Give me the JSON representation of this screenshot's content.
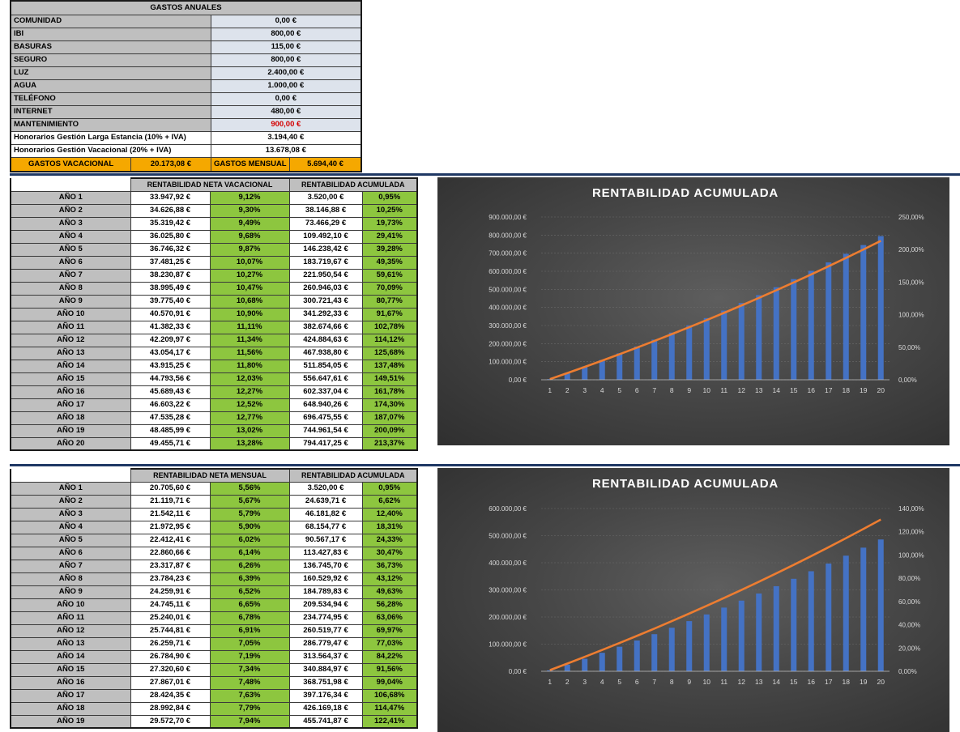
{
  "gastos": {
    "title": "GASTOS ANUALES",
    "rows": [
      {
        "label": "COMUNIDAD",
        "value": "0,00 €"
      },
      {
        "label": "IBI",
        "value": "800,00 €"
      },
      {
        "label": "BASURAS",
        "value": "115,00 €"
      },
      {
        "label": "SEGURO",
        "value": "800,00 €"
      },
      {
        "label": "LUZ",
        "value": "2.400,00 €"
      },
      {
        "label": "AGUA",
        "value": "1.000,00 €"
      },
      {
        "label": "TELÉFONO",
        "value": "0,00 €"
      },
      {
        "label": "INTERNET",
        "value": "480,00 €"
      },
      {
        "label": "MANTENIMIENTO",
        "value": "900,00 €"
      }
    ],
    "honorarios": [
      {
        "label": "Honorarios Gestión Larga Estancia (10% + IVA)",
        "value": "3.194,40 €"
      },
      {
        "label": "Honorarios Gestión Vacacional (20% + IVA)",
        "value": "13.678,08 €"
      }
    ],
    "totals": {
      "vac_label": "GASTOS VACACIONAL",
      "vac_value": "20.173,08 €",
      "men_label": "GASTOS MENSUAL",
      "men_value": "5.694,40 €"
    }
  },
  "vacacional": {
    "header1": "RENTABILIDAD NETA VACACIONAL",
    "header2": "RENTABILIDAD ACUMULADA",
    "rows": [
      {
        "year": "AÑO 1",
        "income": "33.947,92 €",
        "pct": "9,12%",
        "acc": "3.520,00 €",
        "acc_pct": "0,95%"
      },
      {
        "year": "AÑO 2",
        "income": "34.626,88 €",
        "pct": "9,30%",
        "acc": "38.146,88 €",
        "acc_pct": "10,25%"
      },
      {
        "year": "AÑO 3",
        "income": "35.319,42 €",
        "pct": "9,49%",
        "acc": "73.466,29 €",
        "acc_pct": "19,73%"
      },
      {
        "year": "AÑO 4",
        "income": "36.025,80 €",
        "pct": "9,68%",
        "acc": "109.492,10 €",
        "acc_pct": "29,41%"
      },
      {
        "year": "AÑO 5",
        "income": "36.746,32 €",
        "pct": "9,87%",
        "acc": "146.238,42 €",
        "acc_pct": "39,28%"
      },
      {
        "year": "AÑO 6",
        "income": "37.481,25 €",
        "pct": "10,07%",
        "acc": "183.719,67 €",
        "acc_pct": "49,35%"
      },
      {
        "year": "AÑO 7",
        "income": "38.230,87 €",
        "pct": "10,27%",
        "acc": "221.950,54 €",
        "acc_pct": "59,61%"
      },
      {
        "year": "AÑO 8",
        "income": "38.995,49 €",
        "pct": "10,47%",
        "acc": "260.946,03 €",
        "acc_pct": "70,09%"
      },
      {
        "year": "AÑO 9",
        "income": "39.775,40 €",
        "pct": "10,68%",
        "acc": "300.721,43 €",
        "acc_pct": "80,77%"
      },
      {
        "year": "AÑO 10",
        "income": "40.570,91 €",
        "pct": "10,90%",
        "acc": "341.292,33 €",
        "acc_pct": "91,67%"
      },
      {
        "year": "AÑO 11",
        "income": "41.382,33 €",
        "pct": "11,11%",
        "acc": "382.674,66 €",
        "acc_pct": "102,78%"
      },
      {
        "year": "AÑO 12",
        "income": "42.209,97 €",
        "pct": "11,34%",
        "acc": "424.884,63 €",
        "acc_pct": "114,12%"
      },
      {
        "year": "AÑO 13",
        "income": "43.054,17 €",
        "pct": "11,56%",
        "acc": "467.938,80 €",
        "acc_pct": "125,68%"
      },
      {
        "year": "AÑO 14",
        "income": "43.915,25 €",
        "pct": "11,80%",
        "acc": "511.854,05 €",
        "acc_pct": "137,48%"
      },
      {
        "year": "AÑO 15",
        "income": "44.793,56 €",
        "pct": "12,03%",
        "acc": "556.647,61 €",
        "acc_pct": "149,51%"
      },
      {
        "year": "AÑO 16",
        "income": "45.689,43 €",
        "pct": "12,27%",
        "acc": "602.337,04 €",
        "acc_pct": "161,78%"
      },
      {
        "year": "AÑO 17",
        "income": "46.603,22 €",
        "pct": "12,52%",
        "acc": "648.940,26 €",
        "acc_pct": "174,30%"
      },
      {
        "year": "AÑO 18",
        "income": "47.535,28 €",
        "pct": "12,77%",
        "acc": "696.475,55 €",
        "acc_pct": "187,07%"
      },
      {
        "year": "AÑO 19",
        "income": "48.485,99 €",
        "pct": "13,02%",
        "acc": "744.961,54 €",
        "acc_pct": "200,09%"
      },
      {
        "year": "AÑO 20",
        "income": "49.455,71 €",
        "pct": "13,28%",
        "acc": "794.417,25 €",
        "acc_pct": "213,37%"
      }
    ]
  },
  "mensual": {
    "header1": "RENTABILIDAD NETA MENSUAL",
    "header2": "RENTABILIDAD ACUMULADA",
    "rows": [
      {
        "year": "AÑO 1",
        "income": "20.705,60 €",
        "pct": "5,56%",
        "acc": "3.520,00 €",
        "acc_pct": "0,95%"
      },
      {
        "year": "AÑO 2",
        "income": "21.119,71 €",
        "pct": "5,67%",
        "acc": "24.639,71 €",
        "acc_pct": "6,62%"
      },
      {
        "year": "AÑO 3",
        "income": "21.542,11 €",
        "pct": "5,79%",
        "acc": "46.181,82 €",
        "acc_pct": "12,40%"
      },
      {
        "year": "AÑO 4",
        "income": "21.972,95 €",
        "pct": "5,90%",
        "acc": "68.154,77 €",
        "acc_pct": "18,31%"
      },
      {
        "year": "AÑO 5",
        "income": "22.412,41 €",
        "pct": "6,02%",
        "acc": "90.567,17 €",
        "acc_pct": "24,33%"
      },
      {
        "year": "AÑO 6",
        "income": "22.860,66 €",
        "pct": "6,14%",
        "acc": "113.427,83 €",
        "acc_pct": "30,47%"
      },
      {
        "year": "AÑO 7",
        "income": "23.317,87 €",
        "pct": "6,26%",
        "acc": "136.745,70 €",
        "acc_pct": "36,73%"
      },
      {
        "year": "AÑO 8",
        "income": "23.784,23 €",
        "pct": "6,39%",
        "acc": "160.529,92 €",
        "acc_pct": "43,12%"
      },
      {
        "year": "AÑO 9",
        "income": "24.259,91 €",
        "pct": "6,52%",
        "acc": "184.789,83 €",
        "acc_pct": "49,63%"
      },
      {
        "year": "AÑO 10",
        "income": "24.745,11 €",
        "pct": "6,65%",
        "acc": "209.534,94 €",
        "acc_pct": "56,28%"
      },
      {
        "year": "AÑO 11",
        "income": "25.240,01 €",
        "pct": "6,78%",
        "acc": "234.774,95 €",
        "acc_pct": "63,06%"
      },
      {
        "year": "AÑO 12",
        "income": "25.744,81 €",
        "pct": "6,91%",
        "acc": "260.519,77 €",
        "acc_pct": "69,97%"
      },
      {
        "year": "AÑO 13",
        "income": "26.259,71 €",
        "pct": "7,05%",
        "acc": "286.779,47 €",
        "acc_pct": "77,03%"
      },
      {
        "year": "AÑO 14",
        "income": "26.784,90 €",
        "pct": "7,19%",
        "acc": "313.564,37 €",
        "acc_pct": "84,22%"
      },
      {
        "year": "AÑO 15",
        "income": "27.320,60 €",
        "pct": "7,34%",
        "acc": "340.884,97 €",
        "acc_pct": "91,56%"
      },
      {
        "year": "AÑO 16",
        "income": "27.867,01 €",
        "pct": "7,48%",
        "acc": "368.751,98 €",
        "acc_pct": "99,04%"
      },
      {
        "year": "AÑO 17",
        "income": "28.424,35 €",
        "pct": "7,63%",
        "acc": "397.176,34 €",
        "acc_pct": "106,68%"
      },
      {
        "year": "AÑO 18",
        "income": "28.992,84 €",
        "pct": "7,79%",
        "acc": "426.169,18 €",
        "acc_pct": "114,47%"
      },
      {
        "year": "AÑO 19",
        "income": "29.572,70 €",
        "pct": "7,94%",
        "acc": "455.741,87 €",
        "acc_pct": "122,41%"
      }
    ]
  },
  "colors": {
    "bar": "#4472c4",
    "line": "#ed7d31",
    "green_cell": "#8dc63f",
    "grey_cell": "#bfbfbf",
    "orange_cell": "#f5a800",
    "divider": "#1f3864"
  },
  "chart_data": [
    {
      "type": "bar",
      "title": "RENTABILIDAD ACUMULADA",
      "categories": [
        "1",
        "2",
        "3",
        "4",
        "5",
        "6",
        "7",
        "8",
        "9",
        "10",
        "11",
        "12",
        "13",
        "14",
        "15",
        "16",
        "17",
        "18",
        "19",
        "20"
      ],
      "series": [
        {
          "type": "bar",
          "axis": "left",
          "values": [
            3520.0,
            38146.88,
            73466.29,
            109492.1,
            146238.42,
            183719.67,
            221950.54,
            260946.03,
            300721.43,
            341292.33,
            382674.66,
            424884.63,
            467938.8,
            511854.05,
            556647.61,
            602337.04,
            648940.26,
            696475.55,
            744961.54,
            794417.25
          ]
        },
        {
          "type": "line",
          "axis": "right",
          "values": [
            0.95,
            10.25,
            19.73,
            29.41,
            39.28,
            49.35,
            59.61,
            70.09,
            80.77,
            91.67,
            102.78,
            114.12,
            125.68,
            137.48,
            149.51,
            161.78,
            174.3,
            187.07,
            200.09,
            213.37
          ]
        }
      ],
      "ylim": [
        0,
        900000
      ],
      "yticks": [
        "0,00 €",
        "100.000,00 €",
        "200.000,00 €",
        "300.000,00 €",
        "400.000,00 €",
        "500.000,00 €",
        "600.000,00 €",
        "700.000,00 €",
        "800.000,00 €",
        "900.000,00 €"
      ],
      "y2lim": [
        0,
        250
      ],
      "y2ticks": [
        "0,00%",
        "50,00%",
        "100,00%",
        "150,00%",
        "200,00%",
        "250,00%"
      ],
      "grid": true
    },
    {
      "type": "bar",
      "title": "RENTABILIDAD ACUMULADA",
      "categories": [
        "1",
        "2",
        "3",
        "4",
        "5",
        "6",
        "7",
        "8",
        "9",
        "10",
        "11",
        "12",
        "13",
        "14",
        "15",
        "16",
        "17",
        "18",
        "19",
        "20"
      ],
      "series": [
        {
          "type": "bar",
          "axis": "left",
          "values": [
            3520.0,
            24639.71,
            46181.82,
            68154.77,
            90567.17,
            113427.83,
            136745.7,
            160529.92,
            184789.83,
            209534.94,
            234774.95,
            260519.77,
            286779.47,
            313564.37,
            340884.97,
            368751.98,
            397176.34,
            426169.18,
            455741.87,
            485900
          ]
        },
        {
          "type": "line",
          "axis": "right",
          "values": [
            0.95,
            6.62,
            12.4,
            18.31,
            24.33,
            30.47,
            36.73,
            43.12,
            49.63,
            56.28,
            63.06,
            69.97,
            77.03,
            84.22,
            91.56,
            99.04,
            106.68,
            114.47,
            122.41,
            130.5
          ]
        }
      ],
      "ylim": [
        0,
        600000
      ],
      "yticks": [
        "0,00 €",
        "100.000,00 €",
        "200.000,00 €",
        "300.000,00 €",
        "400.000,00 €",
        "500.000,00 €",
        "600.000,00 €"
      ],
      "y2lim": [
        0,
        140
      ],
      "y2ticks": [
        "0,00%",
        "20,00%",
        "40,00%",
        "60,00%",
        "80,00%",
        "100,00%",
        "120,00%",
        "140,00%"
      ],
      "grid": true
    }
  ]
}
